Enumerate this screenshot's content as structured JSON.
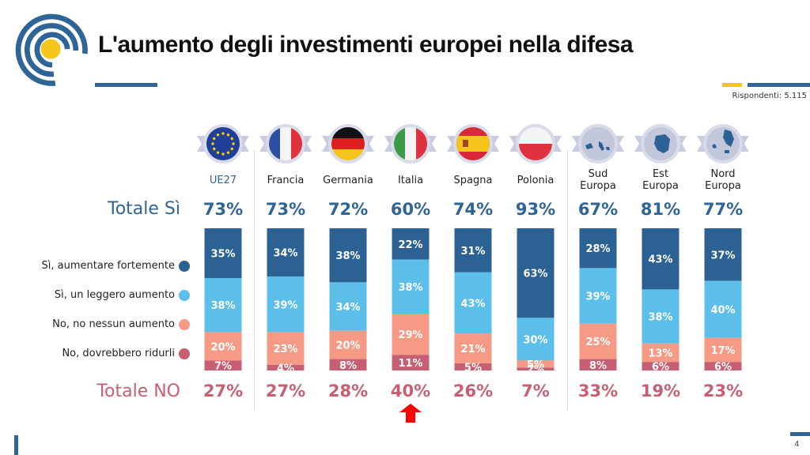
{
  "header": {
    "title": "L'aumento degli investimenti europei nella difesa",
    "respondents": "Rispondenti: 5.115"
  },
  "row_labels": {
    "totale_si": "Totale Sì",
    "totale_no": "Totale NO"
  },
  "footer": {
    "page_number": "4"
  },
  "colors": {
    "strong_increase": "#2b6193",
    "slight_increase": "#5bbfe9",
    "no_increase": "#f59a84",
    "reduce": "#c75f72",
    "brand_blue": "#2e6496",
    "brand_yellow": "#f5c51c",
    "highlight_arrow": "#ff0000"
  },
  "chart_data": {
    "type": "bar",
    "stacked": true,
    "title": "L'aumento degli investimenti europei nella difesa",
    "categories": [
      "UE27",
      "Francia",
      "Germania",
      "Italia",
      "Spagna",
      "Polonia",
      "Sud Europa",
      "Est Europa",
      "Nord Europa"
    ],
    "category_icons": [
      "eu-flag-icon",
      "france-flag-icon",
      "germany-flag-icon",
      "italy-flag-icon",
      "spain-flag-icon",
      "poland-flag-icon",
      "south-europe-map-icon",
      "east-europe-map-icon",
      "north-europe-map-icon"
    ],
    "series": [
      {
        "name": "Sì, aumentare fortemente",
        "values": [
          35,
          34,
          38,
          22,
          31,
          63,
          28,
          43,
          37
        ]
      },
      {
        "name": "Sì, un leggero aumento",
        "values": [
          38,
          39,
          34,
          38,
          43,
          30,
          39,
          38,
          40
        ]
      },
      {
        "name": "No, no nessun aumento",
        "values": [
          20,
          23,
          20,
          29,
          21,
          5,
          25,
          13,
          17
        ]
      },
      {
        "name": "No, dovrebbero ridurli",
        "values": [
          7,
          4,
          8,
          11,
          5,
          2,
          8,
          6,
          6
        ]
      }
    ],
    "totals_yes": [
      "73%",
      "73%",
      "72%",
      "60%",
      "74%",
      "93%",
      "67%",
      "81%",
      "77%"
    ],
    "totals_no": [
      "27%",
      "27%",
      "28%",
      "40%",
      "26%",
      "7%",
      "33%",
      "19%",
      "23%"
    ],
    "highlighted_category": "Italia",
    "legend_position": "left",
    "ylim": [
      0,
      100
    ],
    "unit": "%"
  }
}
